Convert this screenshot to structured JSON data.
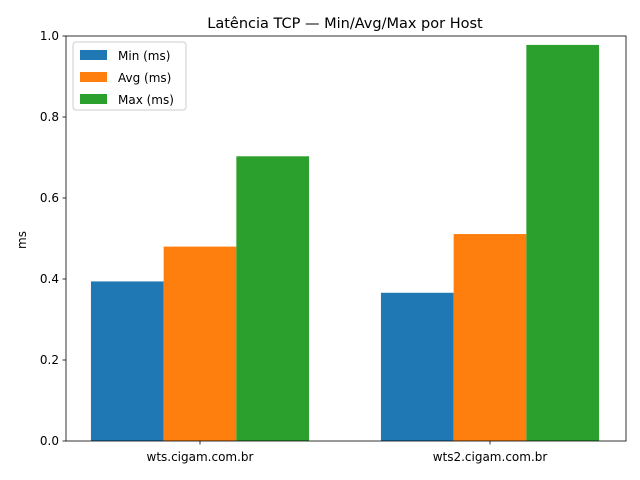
{
  "chart_data": {
    "type": "bar",
    "title": "Latência TCP — Min/Avg/Max por Host",
    "xlabel": "",
    "ylabel": "ms",
    "categories": [
      "wts.cigam.com.br",
      "wts2.cigam.com.br"
    ],
    "series": [
      {
        "name": "Min (ms)",
        "values": [
          0.394,
          0.366
        ],
        "color": "#1f77b4"
      },
      {
        "name": "Avg (ms)",
        "values": [
          0.48,
          0.511
        ],
        "color": "#ff7f0e"
      },
      {
        "name": "Max (ms)",
        "values": [
          0.703,
          0.978
        ],
        "color": "#2ca02c"
      }
    ],
    "ylim": [
      0,
      1.0
    ],
    "yticks": [
      "0.0",
      "0.2",
      "0.4",
      "0.6",
      "0.8",
      "1.0"
    ],
    "ytick_values": [
      0,
      0.2,
      0.4,
      0.6,
      0.8,
      1.0
    ],
    "grid": false,
    "legend_position": "top-left"
  }
}
